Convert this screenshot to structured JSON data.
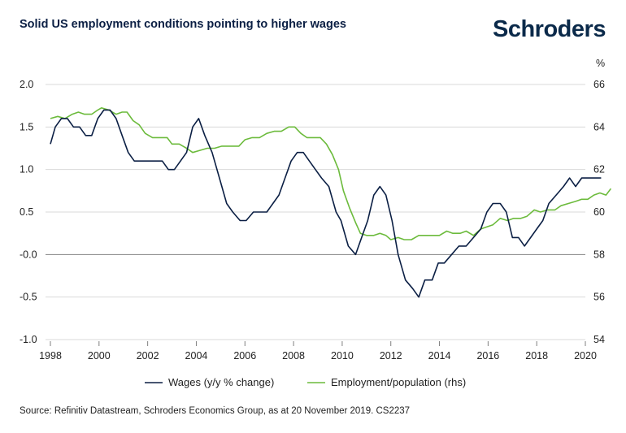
{
  "chart_data": {
    "type": "line",
    "title": "Solid US employment conditions pointing to higher wages",
    "brand": "Schroders",
    "source": "Source: Refinitiv Datastream, Schroders Economics Group, as at 20 November 2019. CS2237",
    "right_unit": "%",
    "x_ticks": [
      "1998",
      "2000",
      "2002",
      "2004",
      "2006",
      "2008",
      "2010",
      "2012",
      "2014",
      "2016",
      "2018",
      "2020"
    ],
    "left_axis": {
      "ylim": [
        -1.0,
        2.0
      ],
      "ticks": [
        2.0,
        1.5,
        1.0,
        0.5,
        0.0,
        -0.5,
        -1.0
      ],
      "tick_labels": [
        "2.0",
        "1.5",
        "1.0",
        "0.5",
        "-0.0",
        "-0.5",
        "-1.0"
      ]
    },
    "right_axis": {
      "ylim": [
        54,
        66
      ],
      "ticks": [
        66,
        64,
        62,
        60,
        58,
        56,
        54
      ],
      "tick_labels": [
        "66",
        "64",
        "62",
        "60",
        "58",
        "56",
        "54"
      ]
    },
    "grid": "horizontal",
    "legend_position": "bottom",
    "colors": {
      "wages": "#0b1f44",
      "employment": "#6cbb3c",
      "grid": "#d9d9d9",
      "zero_line": "#808080"
    },
    "series": [
      {
        "name": "Wages (y/y % change)",
        "axis": "left",
        "points": [
          [
            1998.0,
            1.3
          ],
          [
            1998.2,
            1.5
          ],
          [
            1998.45,
            1.6
          ],
          [
            1998.7,
            1.6
          ],
          [
            1998.95,
            1.5
          ],
          [
            1999.2,
            1.5
          ],
          [
            1999.45,
            1.4
          ],
          [
            1999.7,
            1.4
          ],
          [
            1999.95,
            1.6
          ],
          [
            2000.2,
            1.7
          ],
          [
            2000.45,
            1.7
          ],
          [
            2000.7,
            1.6
          ],
          [
            2000.95,
            1.4
          ],
          [
            2001.2,
            1.2
          ],
          [
            2001.45,
            1.1
          ],
          [
            2001.7,
            1.1
          ],
          [
            2002.0,
            1.1
          ],
          [
            2002.3,
            1.1
          ],
          [
            2002.6,
            1.1
          ],
          [
            2002.85,
            1.0
          ],
          [
            2003.1,
            1.0
          ],
          [
            2003.35,
            1.1
          ],
          [
            2003.6,
            1.2
          ],
          [
            2003.85,
            1.5
          ],
          [
            2004.1,
            1.6
          ],
          [
            2004.35,
            1.4
          ],
          [
            2004.65,
            1.2
          ],
          [
            2004.95,
            0.9
          ],
          [
            2005.25,
            0.6
          ],
          [
            2005.5,
            0.5
          ],
          [
            2005.8,
            0.4
          ],
          [
            2006.05,
            0.4
          ],
          [
            2006.35,
            0.5
          ],
          [
            2006.65,
            0.5
          ],
          [
            2006.9,
            0.5
          ],
          [
            2007.15,
            0.6
          ],
          [
            2007.4,
            0.7
          ],
          [
            2007.65,
            0.9
          ],
          [
            2007.9,
            1.1
          ],
          [
            2008.15,
            1.2
          ],
          [
            2008.4,
            1.2
          ],
          [
            2008.65,
            1.1
          ],
          [
            2008.9,
            1.0
          ],
          [
            2009.15,
            0.9
          ],
          [
            2009.45,
            0.8
          ],
          [
            2009.75,
            0.5
          ],
          [
            2009.95,
            0.4
          ],
          [
            2010.25,
            0.1
          ],
          [
            2010.55,
            0.0
          ],
          [
            2010.8,
            0.2
          ],
          [
            2011.05,
            0.4
          ],
          [
            2011.3,
            0.7
          ],
          [
            2011.55,
            0.8
          ],
          [
            2011.8,
            0.7
          ],
          [
            2012.05,
            0.4
          ],
          [
            2012.3,
            0.0
          ],
          [
            2012.6,
            -0.3
          ],
          [
            2012.9,
            -0.4
          ],
          [
            2013.15,
            -0.5
          ],
          [
            2013.4,
            -0.3
          ],
          [
            2013.7,
            -0.3
          ],
          [
            2013.95,
            -0.1
          ],
          [
            2014.2,
            -0.1
          ],
          [
            2014.5,
            0.0
          ],
          [
            2014.8,
            0.1
          ],
          [
            2015.1,
            0.1
          ],
          [
            2015.4,
            0.2
          ],
          [
            2015.7,
            0.3
          ],
          [
            2015.95,
            0.5
          ],
          [
            2016.2,
            0.6
          ],
          [
            2016.5,
            0.6
          ],
          [
            2016.75,
            0.5
          ],
          [
            2017.0,
            0.2
          ],
          [
            2017.25,
            0.2
          ],
          [
            2017.5,
            0.1
          ],
          [
            2017.75,
            0.2
          ],
          [
            2018.0,
            0.3
          ],
          [
            2018.25,
            0.4
          ],
          [
            2018.5,
            0.6
          ],
          [
            2018.8,
            0.7
          ],
          [
            2019.1,
            0.8
          ],
          [
            2019.35,
            0.9
          ],
          [
            2019.6,
            0.8
          ],
          [
            2019.85,
            0.9
          ],
          [
            2020.1,
            0.9
          ],
          [
            2020.4,
            0.9
          ],
          [
            2020.65,
            0.9
          ]
        ]
      },
      {
        "name": "Employment/population (rhs)",
        "axis": "right",
        "points": [
          [
            1998.0,
            64.4
          ],
          [
            1998.3,
            64.5
          ],
          [
            1998.6,
            64.4
          ],
          [
            1998.9,
            64.6
          ],
          [
            1999.15,
            64.7
          ],
          [
            1999.4,
            64.6
          ],
          [
            1999.7,
            64.6
          ],
          [
            1999.95,
            64.8
          ],
          [
            2000.1,
            64.9
          ],
          [
            2000.4,
            64.8
          ],
          [
            2000.7,
            64.6
          ],
          [
            2000.95,
            64.7
          ],
          [
            2001.15,
            64.7
          ],
          [
            2001.4,
            64.3
          ],
          [
            2001.65,
            64.1
          ],
          [
            2001.9,
            63.7
          ],
          [
            2002.2,
            63.5
          ],
          [
            2002.5,
            63.5
          ],
          [
            2002.8,
            63.5
          ],
          [
            2003.0,
            63.2
          ],
          [
            2003.3,
            63.2
          ],
          [
            2003.6,
            63.0
          ],
          [
            2003.85,
            62.8
          ],
          [
            2004.15,
            62.9
          ],
          [
            2004.45,
            63.0
          ],
          [
            2004.75,
            63.0
          ],
          [
            2005.05,
            63.1
          ],
          [
            2005.4,
            63.1
          ],
          [
            2005.75,
            63.1
          ],
          [
            2006.0,
            63.4
          ],
          [
            2006.3,
            63.5
          ],
          [
            2006.6,
            63.5
          ],
          [
            2006.9,
            63.7
          ],
          [
            2007.2,
            63.8
          ],
          [
            2007.5,
            63.8
          ],
          [
            2007.8,
            64.0
          ],
          [
            2008.05,
            64.0
          ],
          [
            2008.3,
            63.7
          ],
          [
            2008.55,
            63.5
          ],
          [
            2008.85,
            63.5
          ],
          [
            2009.1,
            63.5
          ],
          [
            2009.35,
            63.2
          ],
          [
            2009.6,
            62.7
          ],
          [
            2009.85,
            62.0
          ],
          [
            2010.05,
            61.0
          ],
          [
            2010.3,
            60.2
          ],
          [
            2010.55,
            59.5
          ],
          [
            2010.75,
            59.0
          ],
          [
            2011.0,
            58.9
          ],
          [
            2011.3,
            58.9
          ],
          [
            2011.55,
            59.0
          ],
          [
            2011.8,
            58.9
          ],
          [
            2012.0,
            58.7
          ],
          [
            2012.3,
            58.8
          ],
          [
            2012.55,
            58.7
          ],
          [
            2012.85,
            58.7
          ],
          [
            2013.15,
            58.9
          ],
          [
            2013.45,
            58.9
          ],
          [
            2013.75,
            58.9
          ],
          [
            2014.0,
            58.9
          ],
          [
            2014.3,
            59.1
          ],
          [
            2014.55,
            59.0
          ],
          [
            2014.85,
            59.0
          ],
          [
            2015.1,
            59.1
          ],
          [
            2015.4,
            58.9
          ],
          [
            2015.7,
            59.2
          ],
          [
            2015.95,
            59.3
          ],
          [
            2016.2,
            59.4
          ],
          [
            2016.5,
            59.7
          ],
          [
            2016.8,
            59.6
          ],
          [
            2017.05,
            59.7
          ],
          [
            2017.35,
            59.7
          ],
          [
            2017.6,
            59.8
          ],
          [
            2017.9,
            60.1
          ],
          [
            2018.15,
            60.0
          ],
          [
            2018.45,
            60.1
          ],
          [
            2018.75,
            60.1
          ],
          [
            2019.0,
            60.3
          ],
          [
            2019.3,
            60.4
          ],
          [
            2019.6,
            60.5
          ],
          [
            2019.85,
            60.6
          ],
          [
            2020.1,
            60.6
          ],
          [
            2020.35,
            60.8
          ],
          [
            2020.6,
            60.9
          ],
          [
            2020.85,
            60.8
          ],
          [
            2021.05,
            61.1
          ]
        ]
      }
    ]
  }
}
